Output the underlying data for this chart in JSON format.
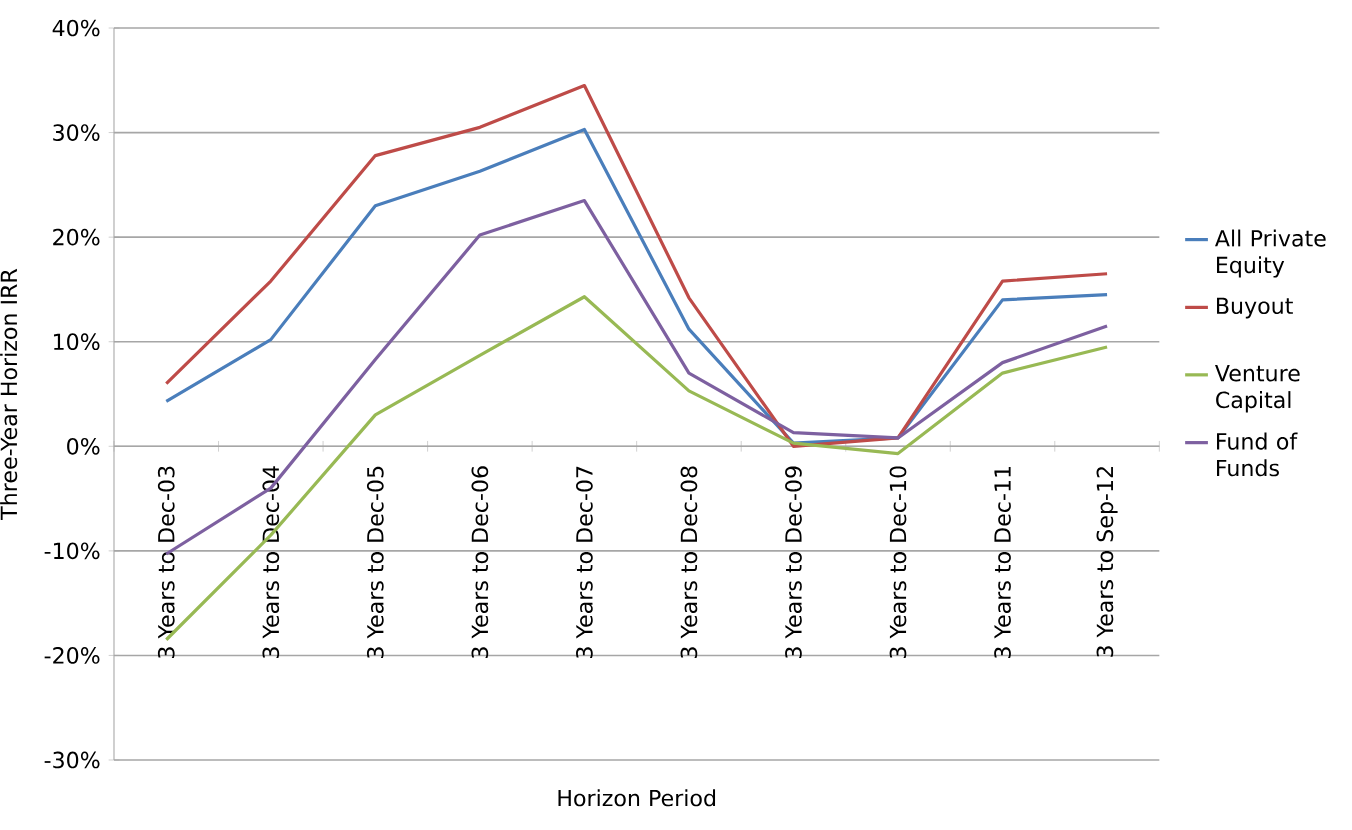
{
  "chart_data": {
    "type": "line",
    "xlabel": "Horizon Period",
    "ylabel": "Three-Year Horizon IRR",
    "categories": [
      "3 Years to Dec-03",
      "3 Years to Dec-04",
      "3 Years to Dec-05",
      "3 Years to Dec-06",
      "3 Years to Dec-07",
      "3 Years to Dec-08",
      "3 Years to Dec-09",
      "3 Years to Dec-10",
      "3 Years to Dec-11",
      "3 Years to Sep-12"
    ],
    "series": [
      {
        "name": "All Private Equity",
        "color": "#4a7ebb",
        "values": [
          4.3,
          10.2,
          23.0,
          26.3,
          30.3,
          11.2,
          0.3,
          0.8,
          14.0,
          14.5
        ]
      },
      {
        "name": "Buyout",
        "color": "#be4b48",
        "values": [
          6.0,
          15.8,
          27.8,
          30.5,
          34.5,
          14.2,
          0.0,
          0.8,
          15.8,
          16.5
        ]
      },
      {
        "name": "Venture Capital",
        "color": "#98b954",
        "values": [
          -18.5,
          -8.5,
          3.0,
          8.7,
          14.3,
          5.3,
          0.3,
          -0.7,
          7.0,
          9.5
        ]
      },
      {
        "name": "Fund of Funds",
        "color": "#7d60a0",
        "values": [
          -10.3,
          -4.0,
          8.3,
          20.2,
          23.5,
          7.0,
          1.3,
          0.8,
          8.0,
          11.5
        ]
      }
    ],
    "ylim": [
      -30,
      40
    ],
    "yticks": [
      {
        "value": -30,
        "label": "-30%"
      },
      {
        "value": -20,
        "label": "-20%"
      },
      {
        "value": -10,
        "label": "-10%"
      },
      {
        "value": 0,
        "label": "0%"
      },
      {
        "value": 10,
        "label": "10%"
      },
      {
        "value": 20,
        "label": "20%"
      },
      {
        "value": 30,
        "label": "30%"
      },
      {
        "value": 40,
        "label": "40%"
      }
    ],
    "grid": "y",
    "legend": "right",
    "marker": "none",
    "line_style": "solid"
  }
}
